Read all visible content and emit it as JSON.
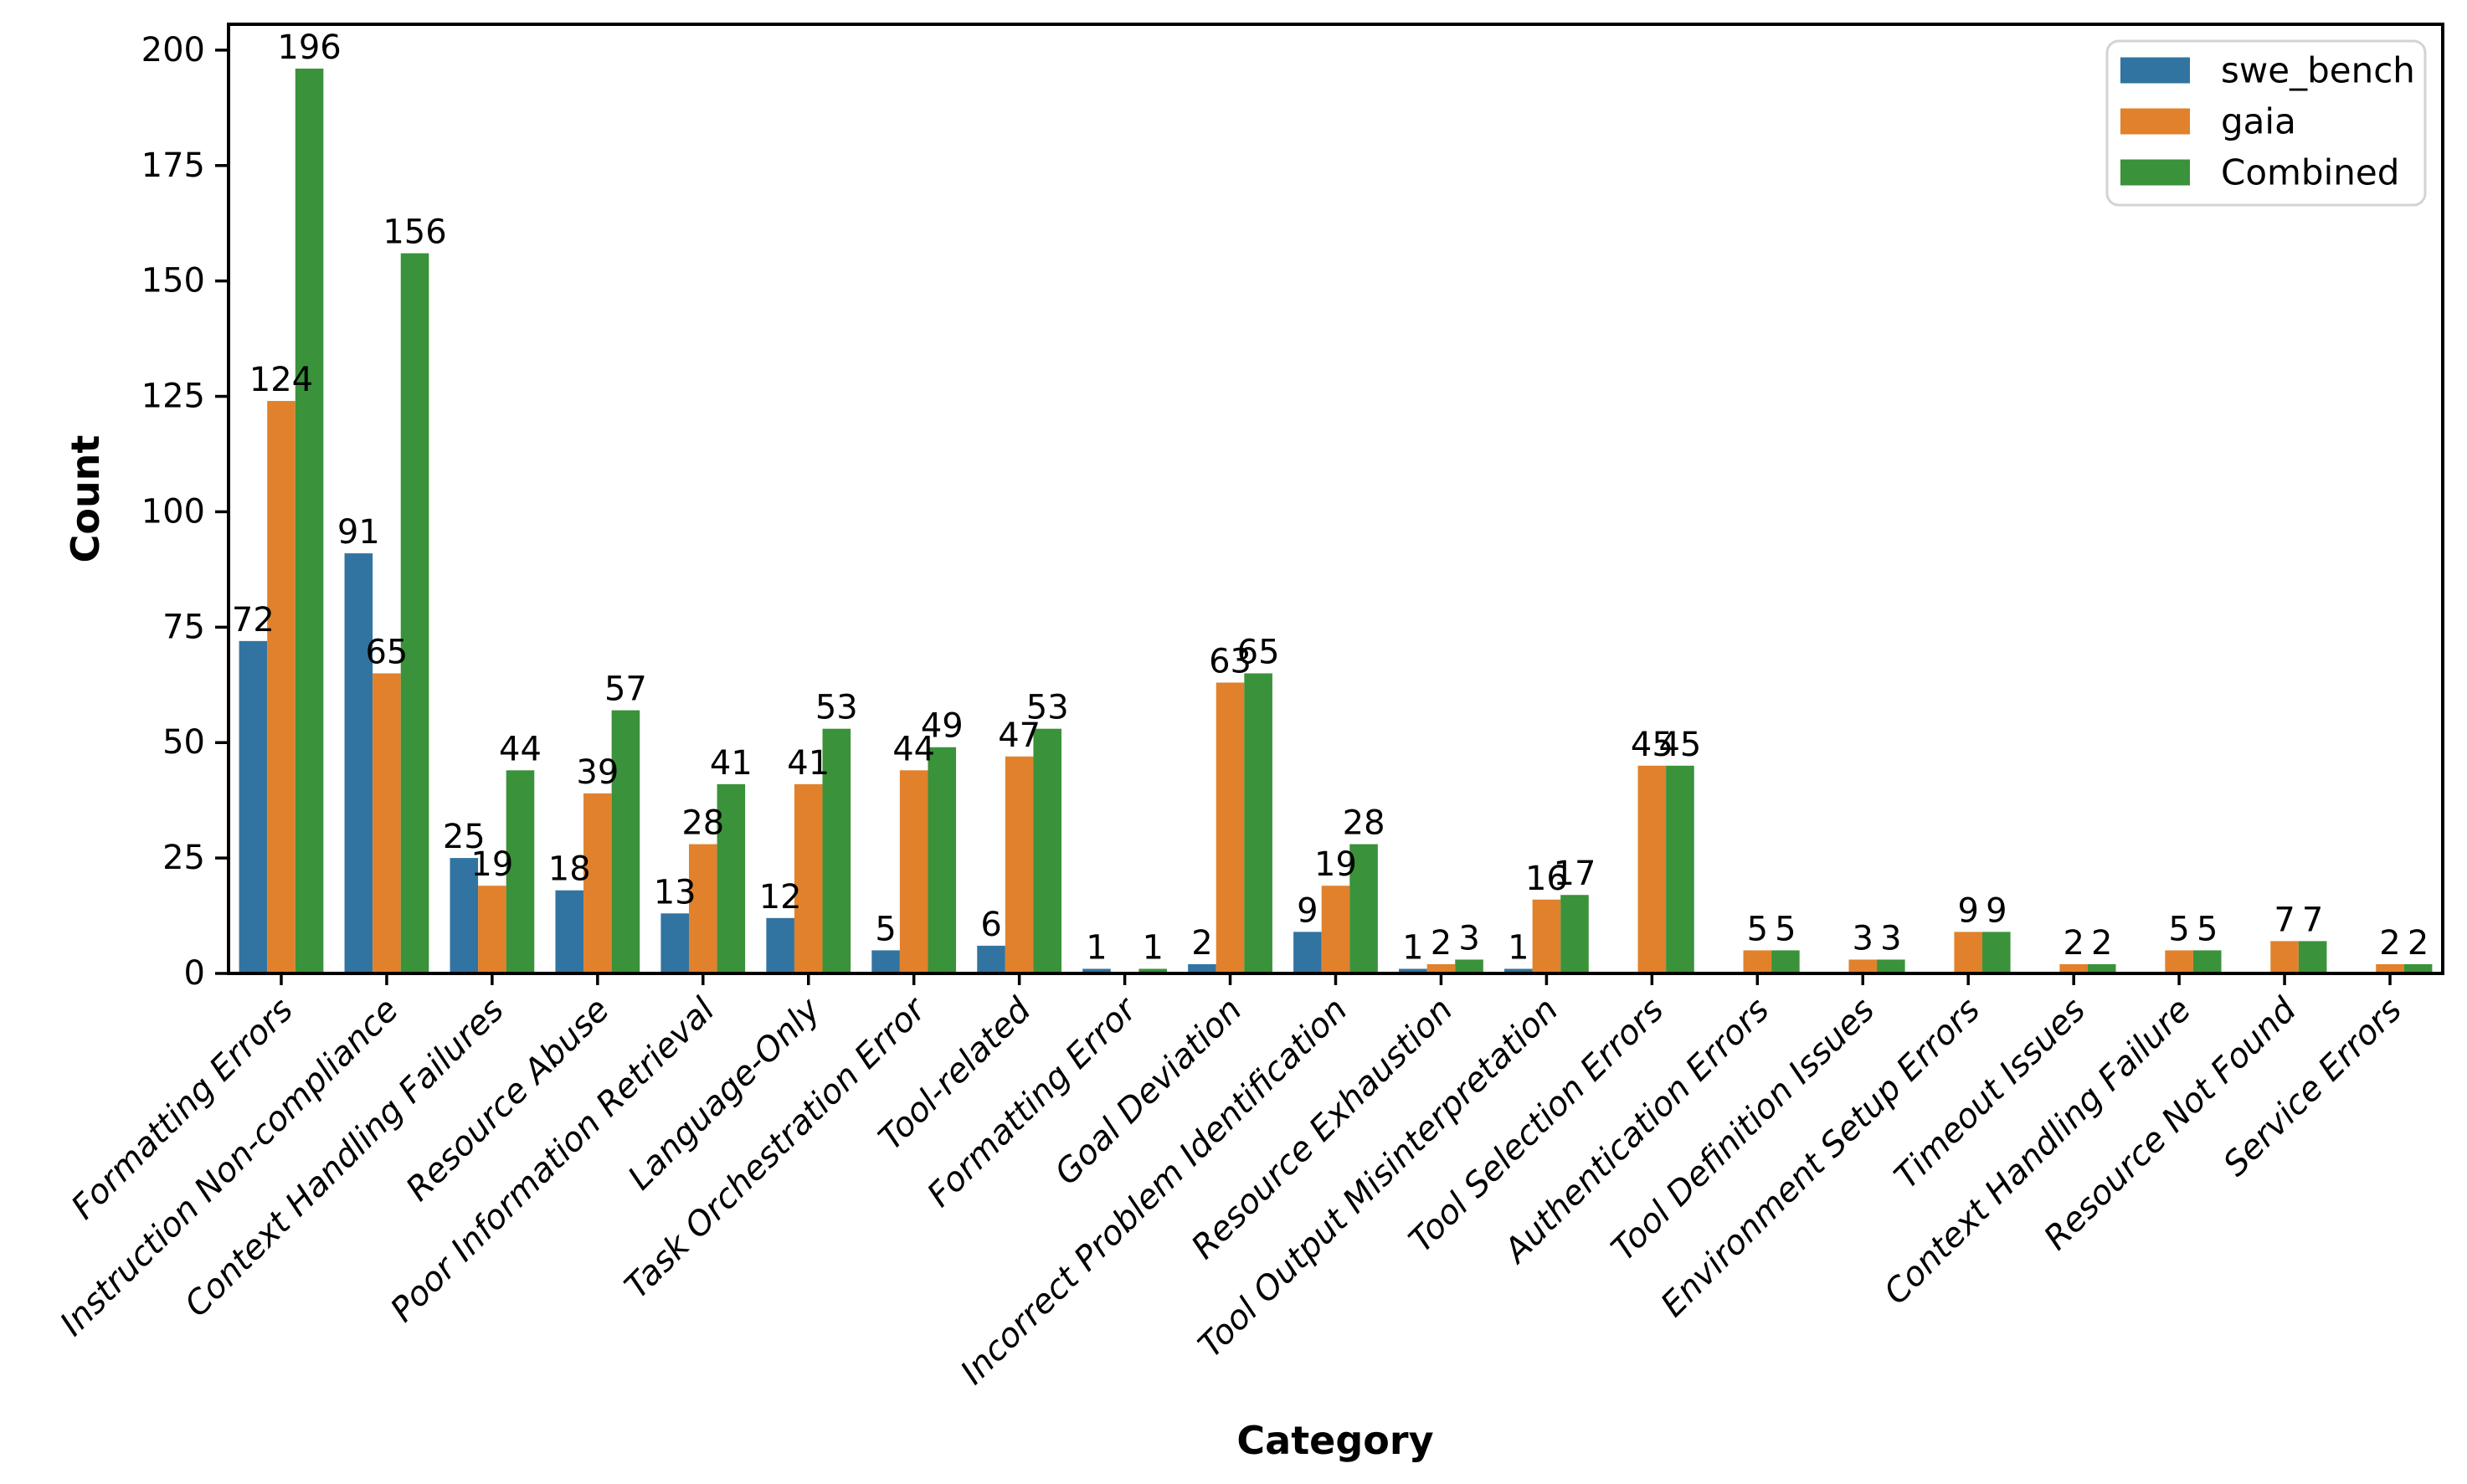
{
  "chart_data": {
    "type": "bar",
    "title": "",
    "xlabel": "Category",
    "ylabel": "Count",
    "categories": [
      "Formatting Errors",
      "Instruction Non-compliance",
      "Context Handling Failures",
      "Resource Abuse",
      "Poor Information Retrieval",
      "Language-Only",
      "Task Orchestration Error",
      "Tool-related",
      "Formatting Error",
      "Goal Deviation",
      "Incorrect Problem Identification",
      "Resource Exhaustion",
      "Tool Output Misinterpretation",
      "Tool Selection Errors",
      "Authentication Errors",
      "Tool Definition Issues",
      "Environment Setup Errors",
      "Timeout Issues",
      "Context Handling Failure",
      "Resource Not Found",
      "Service Errors"
    ],
    "series": [
      {
        "name": "swe_bench",
        "color": "#3274a1",
        "values": [
          72,
          91,
          25,
          18,
          13,
          12,
          5,
          6,
          1,
          2,
          9,
          1,
          1,
          0,
          0,
          0,
          0,
          0,
          0,
          0,
          0
        ]
      },
      {
        "name": "gaia",
        "color": "#e1812c",
        "values": [
          124,
          65,
          19,
          39,
          28,
          41,
          44,
          47,
          0,
          63,
          19,
          2,
          16,
          45,
          5,
          3,
          9,
          2,
          5,
          7,
          2
        ]
      },
      {
        "name": "Combined",
        "color": "#3a923a",
        "values": [
          196,
          156,
          44,
          57,
          41,
          53,
          49,
          53,
          1,
          65,
          28,
          3,
          17,
          45,
          5,
          3,
          9,
          2,
          5,
          7,
          2
        ]
      }
    ],
    "yticks": [
      0,
      25,
      50,
      75,
      100,
      125,
      150,
      175,
      200
    ],
    "ylim": [
      0,
      205.6
    ],
    "bar_value_labels": true,
    "grid": false,
    "legend": {
      "position": "upper right",
      "entries": [
        "swe_bench",
        "gaia",
        "Combined"
      ]
    }
  },
  "style": {
    "background": "#ffffff",
    "axis_color": "#000000",
    "text_color": "#000000",
    "legend_border_color": "#d3d3d3",
    "legend_background": "#ffffff"
  }
}
